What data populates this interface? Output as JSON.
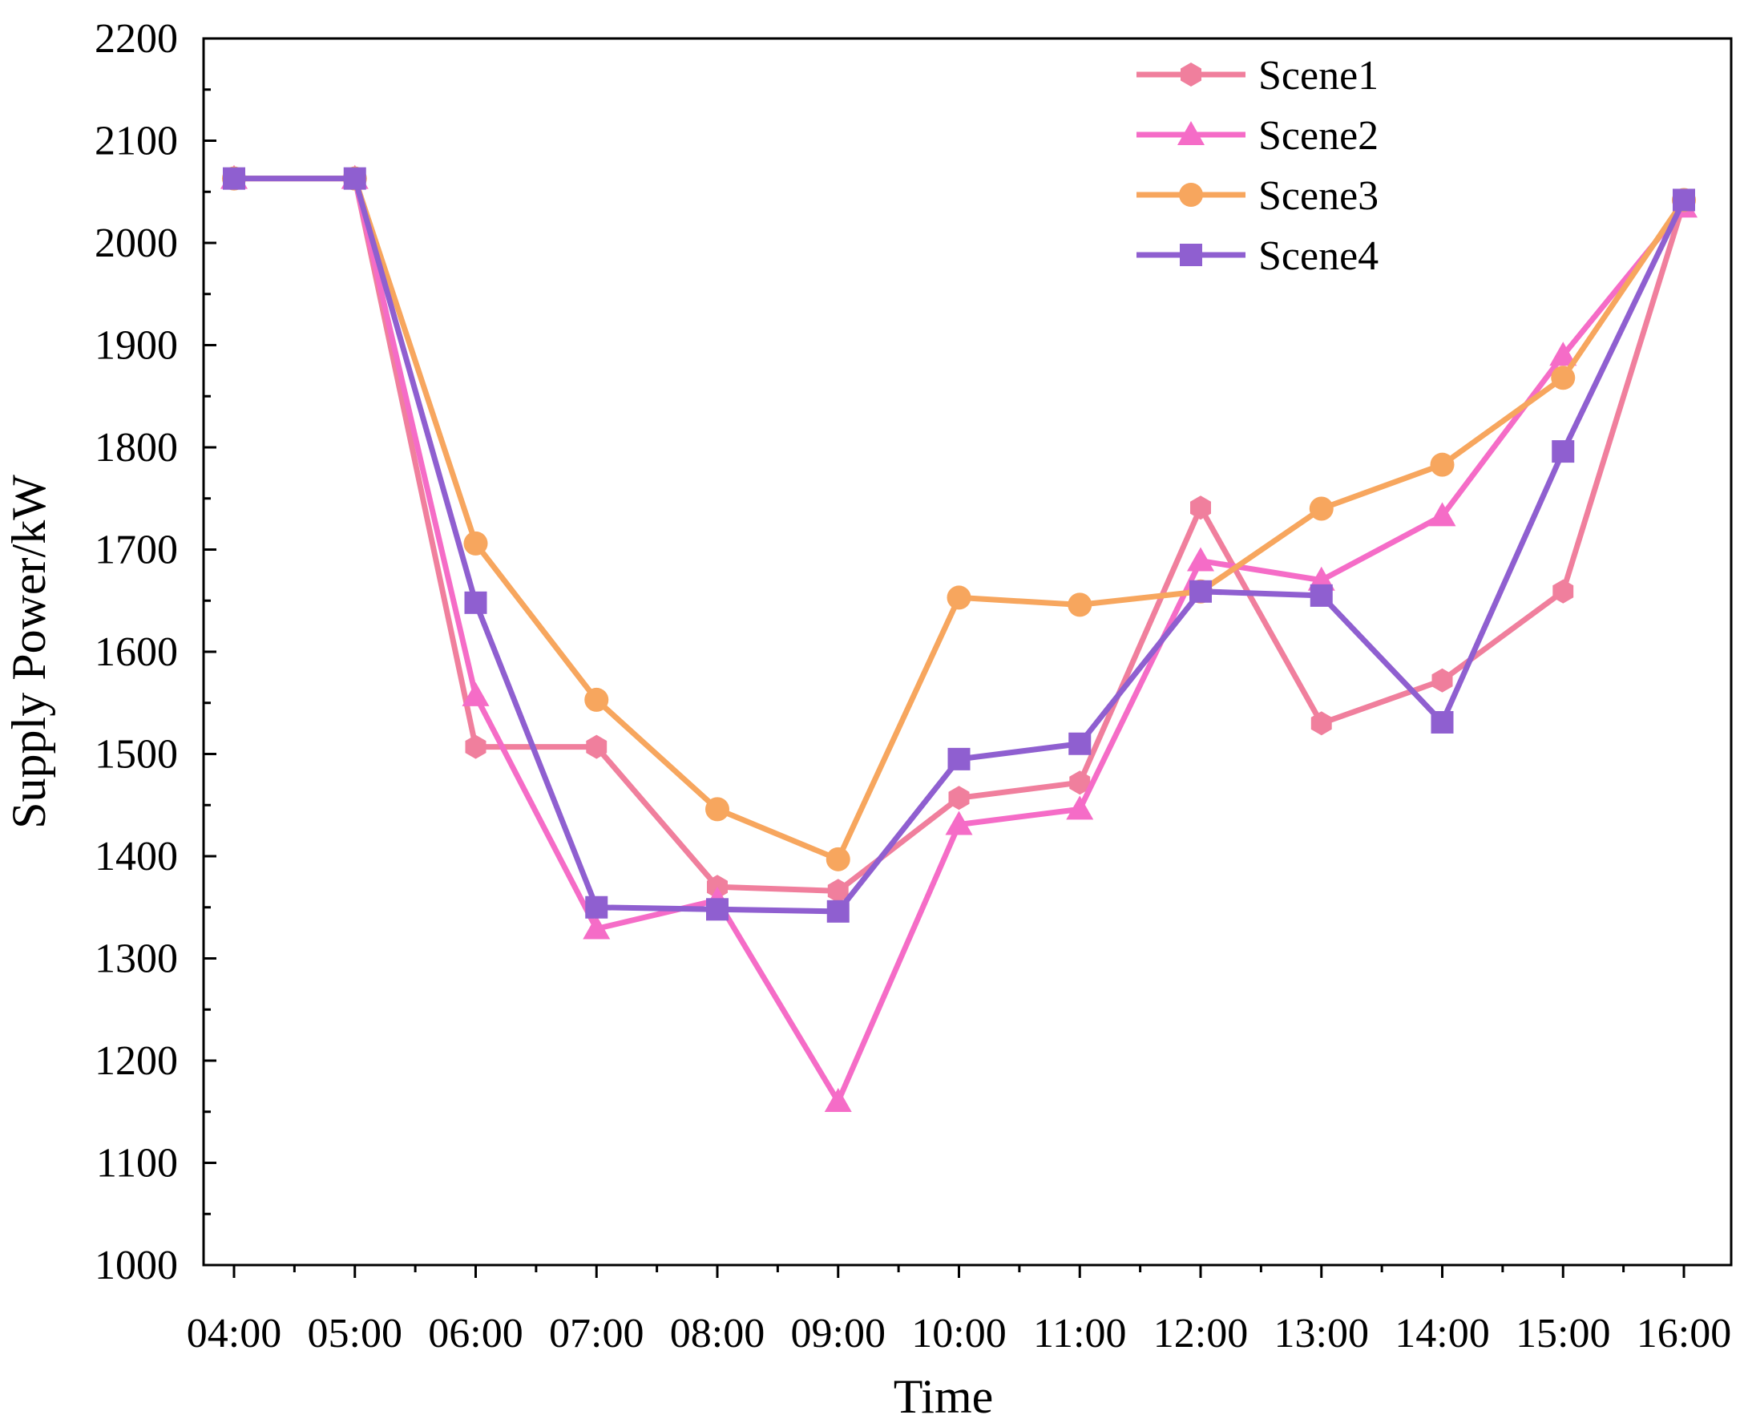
{
  "chart_data": {
    "type": "line",
    "title": "",
    "xlabel": "Time",
    "ylabel": "Supply Power/kW",
    "categories": [
      "04:00",
      "05:00",
      "06:00",
      "07:00",
      "08:00",
      "09:00",
      "10:00",
      "11:00",
      "12:00",
      "13:00",
      "14:00",
      "15:00",
      "16:00"
    ],
    "ylim": [
      1000,
      2200
    ],
    "yticks": [
      1000,
      1100,
      1200,
      1300,
      1400,
      1500,
      1600,
      1700,
      1800,
      1900,
      2000,
      2100,
      2200
    ],
    "ytick_labels": [
      "1000",
      "1100",
      "1200",
      "1300",
      "1400",
      "1500",
      "1600",
      "1700",
      "1800",
      "1900",
      "2000",
      "2100",
      "2200"
    ],
    "grid": false,
    "legend_position": "top-right",
    "series": [
      {
        "name": "Scene1",
        "marker": "hexagon",
        "color": "#f07f9d",
        "values": [
          2063,
          2063,
          1507,
          1507,
          1370,
          1366,
          1457,
          1472,
          1741,
          1530,
          1572,
          1659,
          2040
        ]
      },
      {
        "name": "Scene2",
        "marker": "triangle",
        "color": "#f56cc7",
        "values": [
          2063,
          2063,
          1557,
          1329,
          1357,
          1160,
          1431,
          1446,
          1689,
          1670,
          1733,
          1890,
          2035
        ]
      },
      {
        "name": "Scene3",
        "marker": "circle",
        "color": "#f7a65e",
        "values": [
          2063,
          2063,
          1706,
          1553,
          1446,
          1397,
          1653,
          1646,
          1659,
          1740,
          1783,
          1868,
          2042
        ]
      },
      {
        "name": "Scene4",
        "marker": "square",
        "color": "#8f5fd0",
        "values": [
          2063,
          2063,
          1648,
          1350,
          1348,
          1346,
          1495,
          1510,
          1659,
          1655,
          1531,
          1796,
          2042
        ]
      }
    ]
  }
}
